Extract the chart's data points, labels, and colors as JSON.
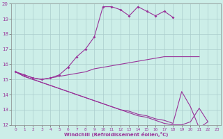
{
  "xlabel": "Windchill (Refroidissement éolien,°C)",
  "bg_color": "#cceee8",
  "grid_color": "#aacccc",
  "line_color": "#993399",
  "xlim": [
    -0.5,
    23.5
  ],
  "ylim": [
    12,
    20
  ],
  "yticks": [
    12,
    13,
    14,
    15,
    16,
    17,
    18,
    19,
    20
  ],
  "xticks": [
    0,
    1,
    2,
    3,
    4,
    5,
    6,
    7,
    8,
    9,
    10,
    11,
    12,
    13,
    14,
    15,
    16,
    17,
    18,
    19,
    20,
    21,
    22,
    23
  ],
  "line1_x": [
    0,
    1,
    2,
    3,
    4,
    5,
    6,
    7,
    8,
    9,
    10,
    11,
    12,
    13,
    14,
    15,
    16,
    17,
    18
  ],
  "line1_y": [
    15.5,
    15.3,
    15.1,
    15.0,
    15.1,
    15.3,
    15.8,
    16.5,
    17.0,
    17.8,
    19.8,
    19.8,
    19.6,
    19.2,
    19.8,
    19.5,
    19.2,
    19.5,
    19.1
  ],
  "line2_x": [
    0,
    1,
    2,
    3,
    4,
    5,
    6,
    7,
    8,
    9,
    10,
    11,
    12,
    13,
    14,
    15,
    16,
    17,
    18,
    19,
    20,
    21
  ],
  "line2_y": [
    15.5,
    15.3,
    15.1,
    15.0,
    15.1,
    15.2,
    15.3,
    15.4,
    15.5,
    15.7,
    15.8,
    15.9,
    16.0,
    16.1,
    16.2,
    16.3,
    16.4,
    16.5,
    16.5,
    16.5,
    16.5,
    16.5
  ],
  "line3_x": [
    0,
    1,
    2,
    3,
    4,
    5,
    6,
    7,
    8,
    9,
    10,
    11,
    12,
    13,
    14,
    15,
    16,
    17,
    18,
    19,
    20,
    21,
    22
  ],
  "line3_y": [
    15.5,
    15.2,
    15.0,
    14.8,
    14.6,
    14.4,
    14.2,
    14.0,
    13.8,
    13.6,
    13.4,
    13.2,
    13.0,
    12.9,
    12.7,
    12.6,
    12.4,
    12.3,
    12.1,
    14.2,
    13.2,
    11.8,
    12.2
  ],
  "line4_x": [
    0,
    1,
    2,
    3,
    4,
    5,
    6,
    7,
    8,
    9,
    10,
    11,
    12,
    13,
    14,
    15,
    16,
    17,
    18,
    19,
    20,
    21,
    22
  ],
  "line4_y": [
    15.5,
    15.2,
    15.0,
    14.8,
    14.6,
    14.4,
    14.2,
    14.0,
    13.8,
    13.6,
    13.4,
    13.2,
    13.0,
    12.8,
    12.6,
    12.5,
    12.3,
    12.1,
    12.0,
    12.0,
    12.2,
    13.1,
    12.2
  ]
}
